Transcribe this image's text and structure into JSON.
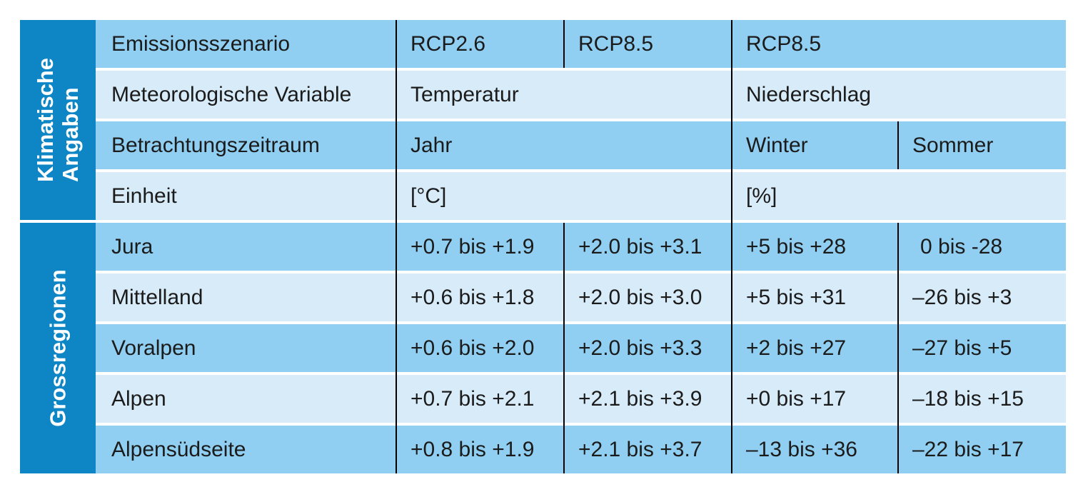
{
  "chart_data": {
    "type": "table",
    "groups": {
      "top": {
        "line1": "Klimatische",
        "line2": "Angaben"
      },
      "bottom": {
        "line1": "Grossregionen"
      }
    },
    "meta": {
      "emissionsszenario": {
        "label": "Emissionsszenario",
        "temp_rcp26": "RCP2.6",
        "temp_rcp85": "RCP8.5",
        "precip_rcp85": "RCP8.5"
      },
      "variable": {
        "label": "Meteorologische Variable",
        "temp": "Temperatur",
        "precip": "Niederschlag"
      },
      "zeitraum": {
        "label": "Betrachtungszeitraum",
        "temp": "Jahr",
        "precip_winter": "Winter",
        "precip_sommer": "Sommer"
      },
      "einheit": {
        "label": "Einheit",
        "temp": "[°C]",
        "precip": "[%]"
      }
    },
    "regions": [
      {
        "name": "Jura",
        "temp_rcp26": "+0.7 bis +1.9",
        "temp_rcp85": "+2.0 bis +3.1",
        "precip_winter": "+5 bis +28",
        "precip_sommer": "0 bis -28"
      },
      {
        "name": "Mittelland",
        "temp_rcp26": "+0.6 bis +1.8",
        "temp_rcp85": "+2.0 bis +3.0",
        "precip_winter": "+5 bis +31",
        "precip_sommer": "–26 bis +3"
      },
      {
        "name": "Voralpen",
        "temp_rcp26": "+0.6 bis +2.0",
        "temp_rcp85": "+2.0 bis +3.3",
        "precip_winter": "+2 bis +27",
        "precip_sommer": "–27 bis +5"
      },
      {
        "name": "Alpen",
        "temp_rcp26": "+0.7 bis +2.1",
        "temp_rcp85": "+2.1 bis +3.9",
        "precip_winter": "+0 bis +17",
        "precip_sommer": "–18 bis +15"
      },
      {
        "name": "Alpensüdseite",
        "temp_rcp26": "+0.8 bis +1.9",
        "temp_rcp85": "+2.1 bis +3.7",
        "precip_winter": "–13 bis +36",
        "precip_sommer": "–22 bis +17"
      }
    ],
    "colors": {
      "group_band": "#0E86C6",
      "row_medium": "#90CFF1",
      "row_light": "#D8EBF9",
      "divider": "#000000",
      "text": "#1B1B1B"
    }
  }
}
